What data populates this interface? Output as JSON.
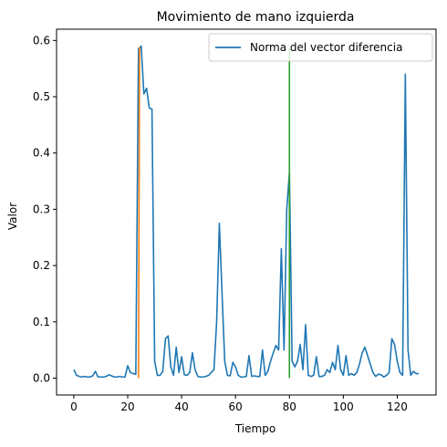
{
  "chart_data": {
    "type": "line",
    "title": "Movimiento de mano izquierda",
    "xlabel": "Tiempo",
    "ylabel": "Valor",
    "xlim": [
      -6.4,
      134.4
    ],
    "ylim": [
      -0.03,
      0.62
    ],
    "xticks": [
      0,
      20,
      40,
      60,
      80,
      100,
      120
    ],
    "yticks": [
      0.0,
      0.1,
      0.2,
      0.3,
      0.4,
      0.5,
      0.6
    ],
    "grid": false,
    "legend_position": "top-right",
    "series": [
      {
        "name": "Norma del vector diferencia",
        "color": "#1f77b4",
        "x": [
          0,
          1,
          2,
          3,
          4,
          5,
          6,
          7,
          8,
          9,
          10,
          11,
          12,
          13,
          14,
          15,
          16,
          17,
          18,
          19,
          20,
          21,
          22,
          23,
          24,
          25,
          26,
          27,
          28,
          29,
          30,
          31,
          32,
          33,
          34,
          35,
          36,
          37,
          38,
          39,
          40,
          41,
          42,
          43,
          44,
          45,
          46,
          47,
          48,
          49,
          50,
          51,
          52,
          53,
          54,
          55,
          56,
          57,
          58,
          59,
          60,
          61,
          62,
          63,
          64,
          65,
          66,
          67,
          68,
          69,
          70,
          71,
          72,
          73,
          74,
          75,
          76,
          77,
          78,
          79,
          80,
          81,
          82,
          83,
          84,
          85,
          86,
          87,
          88,
          89,
          90,
          91,
          92,
          93,
          94,
          95,
          96,
          97,
          98,
          99,
          100,
          101,
          102,
          103,
          104,
          105,
          106,
          107,
          108,
          109,
          110,
          111,
          112,
          113,
          114,
          115,
          116,
          117,
          118,
          119,
          120,
          121,
          122,
          123,
          124,
          125,
          126,
          127,
          128
        ],
        "values": [
          0.015,
          0.005,
          0.003,
          0.002,
          0.003,
          0.002,
          0.002,
          0.004,
          0.012,
          0.002,
          0.002,
          0.002,
          0.003,
          0.006,
          0.004,
          0.002,
          0.002,
          0.003,
          0.002,
          0.002,
          0.022,
          0.01,
          0.008,
          0.007,
          0.585,
          0.59,
          0.505,
          0.515,
          0.48,
          0.478,
          0.03,
          0.005,
          0.005,
          0.012,
          0.07,
          0.075,
          0.02,
          0.005,
          0.055,
          0.01,
          0.038,
          0.006,
          0.005,
          0.01,
          0.045,
          0.015,
          0.003,
          0.002,
          0.002,
          0.003,
          0.005,
          0.01,
          0.015,
          0.1,
          0.275,
          0.15,
          0.03,
          0.005,
          0.004,
          0.028,
          0.02,
          0.005,
          0.002,
          0.002,
          0.003,
          0.04,
          0.003,
          0.004,
          0.003,
          0.003,
          0.05,
          0.005,
          0.012,
          0.03,
          0.045,
          0.058,
          0.05,
          0.23,
          0.05,
          0.3,
          0.365,
          0.03,
          0.02,
          0.03,
          0.06,
          0.015,
          0.095,
          0.005,
          0.003,
          0.005,
          0.038,
          0.003,
          0.003,
          0.005,
          0.015,
          0.01,
          0.028,
          0.015,
          0.058,
          0.015,
          0.005,
          0.04,
          0.005,
          0.008,
          0.005,
          0.01,
          0.025,
          0.045,
          0.055,
          0.04,
          0.025,
          0.01,
          0.003,
          0.007,
          0.006,
          0.002,
          0.005,
          0.01,
          0.07,
          0.06,
          0.03,
          0.01,
          0.005,
          0.54,
          0.05,
          0.005,
          0.012,
          0.008,
          0.008
        ]
      },
      {
        "name": "",
        "color": "#ff7f0e",
        "x": [
          24,
          24.4
        ],
        "values": [
          0.0,
          0.588
        ]
      },
      {
        "name": "",
        "color": "#2ca02c",
        "x": [
          80,
          80
        ],
        "values": [
          0.0,
          0.585
        ]
      }
    ]
  }
}
